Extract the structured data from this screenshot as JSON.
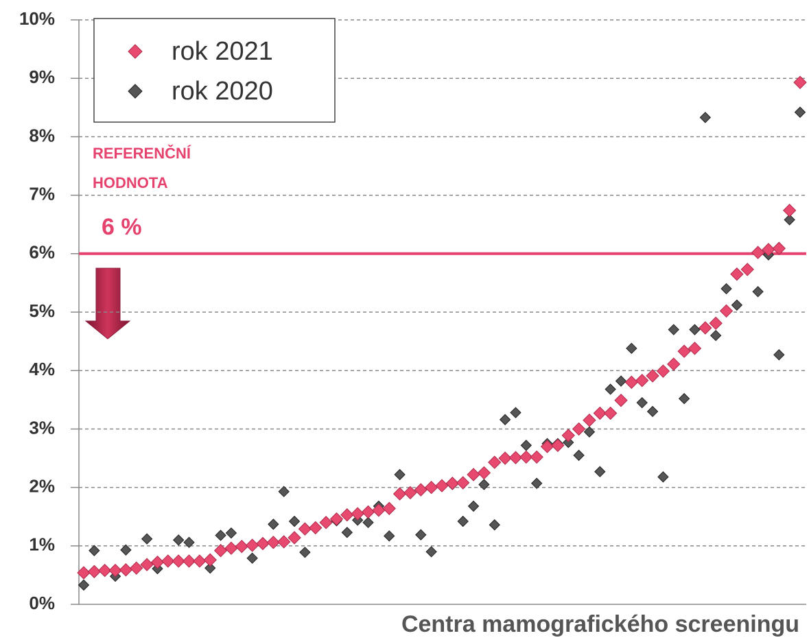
{
  "chart_data": {
    "type": "scatter",
    "xlabel": "Centra mamografického screeningu",
    "categories": [
      null,
      null,
      null,
      null,
      null,
      null,
      null,
      null,
      null,
      null,
      null,
      null,
      null,
      null,
      null,
      null,
      null,
      null,
      null,
      null,
      null,
      null,
      null,
      null,
      null,
      null,
      null,
      null,
      null,
      null,
      null,
      null,
      null,
      null,
      null,
      null,
      null,
      null,
      null,
      null,
      null,
      null,
      null,
      null,
      null,
      null,
      null,
      null,
      null,
      null,
      null,
      null,
      null,
      null,
      null,
      null,
      null,
      null,
      null,
      null,
      null,
      null,
      null,
      null,
      null,
      null,
      null,
      null,
      null
    ],
    "series": [
      {
        "name": "rok 2021",
        "color": "#e8496e",
        "values": [
          0.54,
          0.56,
          0.58,
          0.58,
          0.59,
          0.62,
          0.68,
          0.72,
          0.74,
          0.74,
          0.74,
          0.74,
          0.76,
          0.92,
          0.96,
          0.99,
          1.01,
          1.04,
          1.06,
          1.07,
          1.14,
          1.29,
          1.31,
          1.4,
          1.46,
          1.53,
          1.55,
          1.58,
          1.61,
          1.64,
          1.89,
          1.91,
          1.96,
          2.0,
          2.03,
          2.07,
          2.08,
          2.22,
          2.25,
          2.43,
          2.5,
          2.51,
          2.52,
          2.52,
          2.7,
          2.72,
          2.89,
          3.0,
          3.15,
          3.27,
          3.27,
          3.49,
          3.8,
          3.83,
          3.91,
          3.99,
          4.11,
          4.33,
          4.38,
          4.73,
          4.81,
          5.02,
          5.65,
          5.73,
          6.02,
          6.07,
          6.09,
          6.74,
          8.93
        ]
      },
      {
        "name": "rok 2020",
        "color": "#555555",
        "values": [
          0.33,
          0.92,
          0.58,
          0.48,
          0.93,
          0.62,
          1.12,
          0.61,
          0.74,
          1.1,
          1.06,
          0.74,
          0.62,
          1.18,
          1.22,
          0.98,
          0.79,
          1.03,
          1.37,
          1.93,
          1.42,
          0.89,
          1.31,
          1.4,
          1.43,
          1.23,
          1.44,
          1.4,
          1.68,
          1.17,
          2.22,
          1.92,
          1.19,
          0.9,
          2.03,
          2.05,
          1.42,
          1.68,
          2.05,
          1.36,
          3.16,
          3.28,
          2.72,
          2.07,
          2.75,
          2.75,
          2.77,
          2.55,
          2.95,
          2.27,
          3.68,
          3.82,
          4.38,
          3.45,
          3.3,
          2.18,
          4.7,
          3.52,
          4.7,
          8.33,
          4.6,
          5.4,
          5.12,
          5.72,
          5.35,
          5.98,
          4.27,
          6.58,
          8.42
        ]
      }
    ],
    "ylim": [
      0,
      10
    ],
    "yticks": [
      {
        "value": 0,
        "label": "0%"
      },
      {
        "value": 1,
        "label": "1%"
      },
      {
        "value": 2,
        "label": "2%"
      },
      {
        "value": 3,
        "label": "3%"
      },
      {
        "value": 4,
        "label": "4%"
      },
      {
        "value": 5,
        "label": "5%"
      },
      {
        "value": 6,
        "label": "6%"
      },
      {
        "value": 7,
        "label": "7%"
      },
      {
        "value": 8,
        "label": "8%"
      },
      {
        "value": 9,
        "label": "9%"
      },
      {
        "value": 10,
        "label": "10%"
      }
    ],
    "grid": true,
    "legend": "upper left",
    "reference_line": {
      "value": 6,
      "color": "#e5426e"
    },
    "annotations": [
      "REFERENČNÍ",
      "HODNOTA",
      "6 %"
    ]
  }
}
